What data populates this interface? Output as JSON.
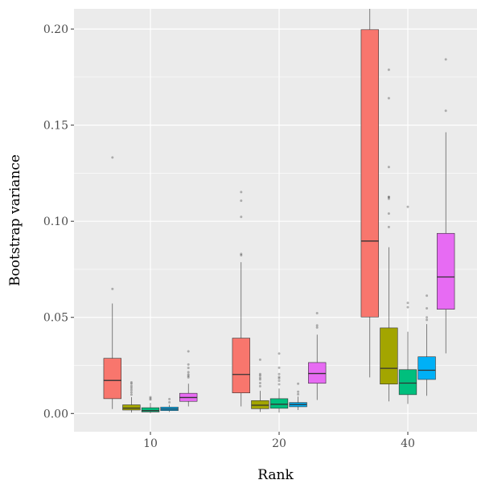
{
  "chart_data": {
    "type": "box",
    "title": "",
    "xlabel": "Rank",
    "ylabel": "Bootstrap variance",
    "categories": [
      "10",
      "20",
      "40"
    ],
    "ylim": [
      -0.0095,
      0.2105
    ],
    "yticks": [
      0.0,
      0.05,
      0.1,
      0.15,
      0.2
    ],
    "ytick_labels": [
      "0.00",
      "0.05",
      "0.10",
      "0.15",
      "0.20"
    ],
    "grid": true,
    "legend": "none",
    "series": [
      {
        "color": "#F8766D",
        "boxes": [
          {
            "category": "10",
            "q1": 0.0077,
            "median": 0.0172,
            "q3": 0.0287,
            "whisker_low": 0.0023,
            "whisker_high": 0.0572,
            "outliers": [
              0.0648,
              0.1332
            ]
          },
          {
            "category": "20",
            "q1": 0.0107,
            "median": 0.0203,
            "q3": 0.0392,
            "whisker_low": 0.0037,
            "whisker_high": 0.0787,
            "outliers": [
              0.0823,
              0.083,
              0.1023,
              0.1107,
              0.1152
            ]
          },
          {
            "category": "40",
            "q1": 0.0502,
            "median": 0.0897,
            "q3": 0.1997,
            "whisker_low": 0.0188,
            "whisker_high": 0.2105,
            "outliers": []
          }
        ]
      },
      {
        "color": "#A3A500",
        "boxes": [
          {
            "category": "10",
            "q1": 0.0018,
            "median": 0.0028,
            "q3": 0.0045,
            "whisker_low": 0.0005,
            "whisker_high": 0.0085,
            "outliers": [
              0.0098,
              0.011,
              0.0122,
              0.0133,
              0.0143,
              0.0155,
              0.0162
            ]
          },
          {
            "category": "20",
            "q1": 0.0025,
            "median": 0.0043,
            "q3": 0.0067,
            "whisker_low": 0.0008,
            "whisker_high": 0.0118,
            "outliers": [
              0.0142,
              0.0158,
              0.0177,
              0.0185,
              0.0197,
              0.0205,
              0.028
            ]
          },
          {
            "category": "40",
            "q1": 0.0153,
            "median": 0.0235,
            "q3": 0.0445,
            "whisker_low": 0.0063,
            "whisker_high": 0.0865,
            "outliers": [
              0.097,
              0.104,
              0.1117,
              0.1125,
              0.1127,
              0.1282,
              0.164,
              0.1788
            ]
          }
        ]
      },
      {
        "color": "#00BF7D",
        "boxes": [
          {
            "category": "10",
            "q1": 0.0008,
            "median": 0.0015,
            "q3": 0.003,
            "whisker_low": 0.0002,
            "whisker_high": 0.0055,
            "outliers": [
              0.0072,
              0.0078,
              0.0085
            ]
          },
          {
            "category": "20",
            "q1": 0.0027,
            "median": 0.0048,
            "q3": 0.0077,
            "whisker_low": 0.0005,
            "whisker_high": 0.013,
            "outliers": [
              0.0152,
              0.017,
              0.0183,
              0.019,
              0.0205,
              0.0238,
              0.0312
            ]
          },
          {
            "category": "40",
            "q1": 0.0098,
            "median": 0.0158,
            "q3": 0.0228,
            "whisker_low": 0.005,
            "whisker_high": 0.0425,
            "outliers": [
              0.0553,
              0.0575,
              0.1075
            ]
          }
        ]
      },
      {
        "color": "#00B0F6",
        "boxes": [
          {
            "category": "10",
            "q1": 0.0015,
            "median": 0.0023,
            "q3": 0.0033,
            "whisker_low": 0.0008,
            "whisker_high": 0.0045,
            "outliers": [
              0.0058,
              0.0075
            ]
          },
          {
            "category": "20",
            "q1": 0.0035,
            "median": 0.0047,
            "q3": 0.0057,
            "whisker_low": 0.0018,
            "whisker_high": 0.0088,
            "outliers": [
              0.01,
              0.0113,
              0.0155
            ]
          },
          {
            "category": "40",
            "q1": 0.0177,
            "median": 0.0225,
            "q3": 0.0295,
            "whisker_low": 0.0092,
            "whisker_high": 0.0465,
            "outliers": [
              0.0487,
              0.05,
              0.0547,
              0.0613
            ]
          }
        ]
      },
      {
        "color": "#E76BF3",
        "boxes": [
          {
            "category": "10",
            "q1": 0.0063,
            "median": 0.0083,
            "q3": 0.0105,
            "whisker_low": 0.0037,
            "whisker_high": 0.0155,
            "outliers": [
              0.0188,
              0.0195,
              0.0203,
              0.0215,
              0.0237,
              0.0255,
              0.0323
            ]
          },
          {
            "category": "20",
            "q1": 0.0157,
            "median": 0.0208,
            "q3": 0.0265,
            "whisker_low": 0.007,
            "whisker_high": 0.041,
            "outliers": [
              0.0447,
              0.0458,
              0.0522
            ]
          },
          {
            "category": "40",
            "q1": 0.0542,
            "median": 0.071,
            "q3": 0.0937,
            "whisker_low": 0.0313,
            "whisker_high": 0.1463,
            "outliers": [
              0.1575,
              0.1842
            ]
          }
        ]
      }
    ]
  }
}
